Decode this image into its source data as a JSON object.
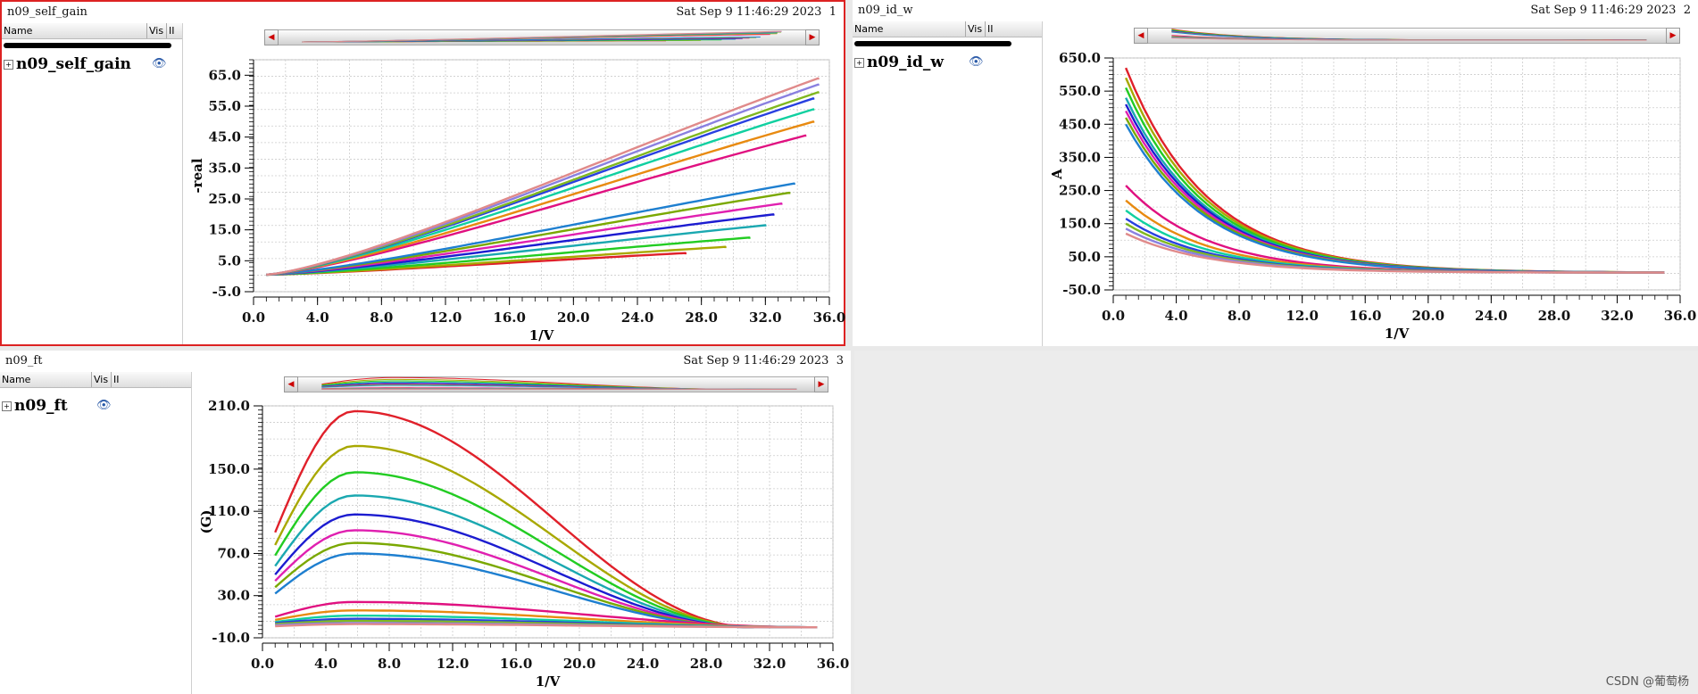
{
  "panels": [
    {
      "name": "n09_self_gain",
      "date": "Sat Sep 9 11:46:29 2023",
      "index": "1",
      "columns": {
        "name": "Name",
        "vis": "Vis",
        "ii": "II"
      },
      "trace": "n09_self_gain"
    },
    {
      "name": "n09_id_w",
      "date": "Sat Sep 9 11:46:29 2023",
      "index": "2",
      "columns": {
        "name": "Name",
        "vis": "Vis",
        "ii": "II"
      },
      "trace": "n09_id_w"
    },
    {
      "name": "n09_ft",
      "date": "Sat Sep 9 11:46:29 2023",
      "index": "3",
      "columns": {
        "name": "Name",
        "vis": "Vis",
        "ii": "II"
      },
      "trace": "n09_ft"
    }
  ],
  "icons": {
    "expand": "plus-box-icon",
    "eye": "eye-icon",
    "left": "left-arrow-icon",
    "right": "right-arrow-icon"
  },
  "watermark": "CSDN @葡萄杨",
  "chart_data": [
    {
      "type": "line",
      "title": "n09_self_gain",
      "xlabel": "1/V",
      "ylabel": "-real",
      "xlim": [
        0,
        36
      ],
      "ylim": [
        -5,
        70
      ],
      "xticks": [
        "0.0",
        "4.0",
        "8.0",
        "12.0",
        "16.0",
        "20.0",
        "24.0",
        "28.0",
        "32.0",
        "36.0"
      ],
      "yticks": [
        "-5.0",
        "5.0",
        "15.0",
        "25.0",
        "35.0",
        "45.0",
        "55.0",
        "65.0"
      ],
      "series_shape": "saturating",
      "series": [
        {
          "name": "s1",
          "color": "#e0202a",
          "x_end": 27,
          "y_end": 7.5
        },
        {
          "name": "s2",
          "color": "#a8a800",
          "x_end": 29.5,
          "y_end": 9.5
        },
        {
          "name": "s3",
          "color": "#22cc22",
          "x_end": 31,
          "y_end": 12.5
        },
        {
          "name": "s4",
          "color": "#1aa8b0",
          "x_end": 32,
          "y_end": 16.5
        },
        {
          "name": "s5",
          "color": "#1c1cd0",
          "x_end": 32.5,
          "y_end": 20
        },
        {
          "name": "s6",
          "color": "#e020b0",
          "x_end": 33,
          "y_end": 23.5
        },
        {
          "name": "s7",
          "color": "#7aa800",
          "x_end": 33.5,
          "y_end": 27
        },
        {
          "name": "s8",
          "color": "#1e7fd0",
          "x_end": 33.8,
          "y_end": 30
        },
        {
          "name": "s9",
          "color": "#e01080",
          "x_end": 34.5,
          "y_end": 45.5
        },
        {
          "name": "s10",
          "color": "#e88a10",
          "x_end": 35,
          "y_end": 50
        },
        {
          "name": "s11",
          "color": "#10d0a0",
          "x_end": 35,
          "y_end": 54
        },
        {
          "name": "s12",
          "color": "#2840e0",
          "x_end": 35,
          "y_end": 57.5
        },
        {
          "name": "s13",
          "color": "#80b820",
          "x_end": 35.3,
          "y_end": 59.5
        },
        {
          "name": "s14",
          "color": "#8a80e0",
          "x_end": 35.3,
          "y_end": 62
        },
        {
          "name": "s15",
          "color": "#e08a8a",
          "x_end": 35.3,
          "y_end": 64
        }
      ]
    },
    {
      "type": "line",
      "title": "n09_id_w",
      "xlabel": "1/V",
      "ylabel": "A",
      "xlim": [
        0,
        36
      ],
      "ylim": [
        -50,
        650
      ],
      "xticks": [
        "0.0",
        "4.0",
        "8.0",
        "12.0",
        "16.0",
        "20.0",
        "24.0",
        "28.0",
        "32.0",
        "36.0"
      ],
      "yticks": [
        "-50.0",
        "50.0",
        "150.0",
        "250.0",
        "350.0",
        "450.0",
        "550.0",
        "650.0"
      ],
      "series_shape": "decay",
      "series": [
        {
          "name": "s1",
          "color": "#e0202a",
          "x_start": 0.8,
          "y_start": 620,
          "x_end": 35,
          "y_end": 2
        },
        {
          "name": "s2",
          "color": "#a8a800",
          "x_start": 0.8,
          "y_start": 590,
          "x_end": 35,
          "y_end": 2
        },
        {
          "name": "s3",
          "color": "#22cc22",
          "x_start": 0.8,
          "y_start": 560,
          "x_end": 35,
          "y_end": 2
        },
        {
          "name": "s4",
          "color": "#1aa8b0",
          "x_start": 0.8,
          "y_start": 530,
          "x_end": 35,
          "y_end": 2
        },
        {
          "name": "s5",
          "color": "#1c1cd0",
          "x_start": 0.8,
          "y_start": 510,
          "x_end": 35,
          "y_end": 2
        },
        {
          "name": "s6",
          "color": "#e020b0",
          "x_start": 0.8,
          "y_start": 490,
          "x_end": 35,
          "y_end": 2
        },
        {
          "name": "s7",
          "color": "#7aa800",
          "x_start": 0.8,
          "y_start": 470,
          "x_end": 35,
          "y_end": 2
        },
        {
          "name": "s8",
          "color": "#1e7fd0",
          "x_start": 0.8,
          "y_start": 450,
          "x_end": 35,
          "y_end": 2
        },
        {
          "name": "s9",
          "color": "#e01080",
          "x_start": 0.8,
          "y_start": 265,
          "x_end": 35,
          "y_end": 2
        },
        {
          "name": "s10",
          "color": "#e88a10",
          "x_start": 0.8,
          "y_start": 220,
          "x_end": 35,
          "y_end": 2
        },
        {
          "name": "s11",
          "color": "#10d0a0",
          "x_start": 0.8,
          "y_start": 190,
          "x_end": 35,
          "y_end": 2
        },
        {
          "name": "s12",
          "color": "#2840e0",
          "x_start": 0.8,
          "y_start": 165,
          "x_end": 35,
          "y_end": 2
        },
        {
          "name": "s13",
          "color": "#80b820",
          "x_start": 0.8,
          "y_start": 150,
          "x_end": 35,
          "y_end": 2
        },
        {
          "name": "s14",
          "color": "#8a80e0",
          "x_start": 0.8,
          "y_start": 135,
          "x_end": 35,
          "y_end": 2
        },
        {
          "name": "s15",
          "color": "#e08a8a",
          "x_start": 0.8,
          "y_start": 120,
          "x_end": 35,
          "y_end": 2
        }
      ]
    },
    {
      "type": "line",
      "title": "n09_ft",
      "xlabel": "1/V",
      "ylabel": "(G)",
      "xlim": [
        0,
        36
      ],
      "ylim": [
        -10,
        210
      ],
      "xticks": [
        "0.0",
        "4.0",
        "8.0",
        "12.0",
        "16.0",
        "20.0",
        "24.0",
        "28.0",
        "32.0",
        "36.0"
      ],
      "yticks": [
        "-10.0",
        "30.0",
        "70.0",
        "110.0",
        "150.0",
        "210.0"
      ],
      "series_shape": "peak",
      "series": [
        {
          "name": "s1",
          "color": "#e0202a",
          "x_start": 0.8,
          "y_start": 90,
          "peak_x": 5.8,
          "peak_y": 205,
          "x_end": 31,
          "y_end": 0
        },
        {
          "name": "s2",
          "color": "#a8a800",
          "x_start": 0.8,
          "y_start": 78,
          "peak_x": 5.8,
          "peak_y": 172,
          "x_end": 31,
          "y_end": 0
        },
        {
          "name": "s3",
          "color": "#22cc22",
          "x_start": 0.8,
          "y_start": 68,
          "peak_x": 5.8,
          "peak_y": 147,
          "x_end": 31,
          "y_end": 0
        },
        {
          "name": "s4",
          "color": "#1aa8b0",
          "x_start": 0.8,
          "y_start": 58,
          "peak_x": 5.8,
          "peak_y": 125,
          "x_end": 31,
          "y_end": 0
        },
        {
          "name": "s5",
          "color": "#1c1cd0",
          "x_start": 0.8,
          "y_start": 50,
          "peak_x": 5.8,
          "peak_y": 107,
          "x_end": 31,
          "y_end": 0
        },
        {
          "name": "s6",
          "color": "#e020b0",
          "x_start": 0.8,
          "y_start": 44,
          "peak_x": 5.8,
          "peak_y": 92,
          "x_end": 31,
          "y_end": 0
        },
        {
          "name": "s7",
          "color": "#7aa800",
          "x_start": 0.8,
          "y_start": 38,
          "peak_x": 5.8,
          "peak_y": 80,
          "x_end": 31,
          "y_end": 0
        },
        {
          "name": "s8",
          "color": "#1e7fd0",
          "x_start": 0.8,
          "y_start": 32,
          "peak_x": 5.8,
          "peak_y": 70,
          "x_end": 31,
          "y_end": 0
        },
        {
          "name": "s9",
          "color": "#e01080",
          "x_start": 0.8,
          "y_start": 10,
          "peak_x": 5.8,
          "peak_y": 24,
          "x_end": 35,
          "y_end": 0
        },
        {
          "name": "s10",
          "color": "#e88a10",
          "x_start": 0.8,
          "y_start": 7,
          "peak_x": 5.8,
          "peak_y": 16,
          "x_end": 35,
          "y_end": 0
        },
        {
          "name": "s11",
          "color": "#10d0a0",
          "x_start": 0.8,
          "y_start": 5,
          "peak_x": 5.8,
          "peak_y": 11,
          "x_end": 35,
          "y_end": 0
        },
        {
          "name": "s12",
          "color": "#2840e0",
          "x_start": 0.8,
          "y_start": 4,
          "peak_x": 5.8,
          "peak_y": 8,
          "x_end": 35,
          "y_end": 0
        },
        {
          "name": "s13",
          "color": "#80b820",
          "x_start": 0.8,
          "y_start": 3,
          "peak_x": 5.8,
          "peak_y": 6,
          "x_end": 35,
          "y_end": 0
        },
        {
          "name": "s14",
          "color": "#8a80e0",
          "x_start": 0.8,
          "y_start": 2,
          "peak_x": 5.8,
          "peak_y": 4,
          "x_end": 35,
          "y_end": 0
        },
        {
          "name": "s15",
          "color": "#e08a8a",
          "x_start": 0.8,
          "y_start": 1,
          "peak_x": 5.8,
          "peak_y": 3,
          "x_end": 35,
          "y_end": 0
        }
      ]
    }
  ]
}
